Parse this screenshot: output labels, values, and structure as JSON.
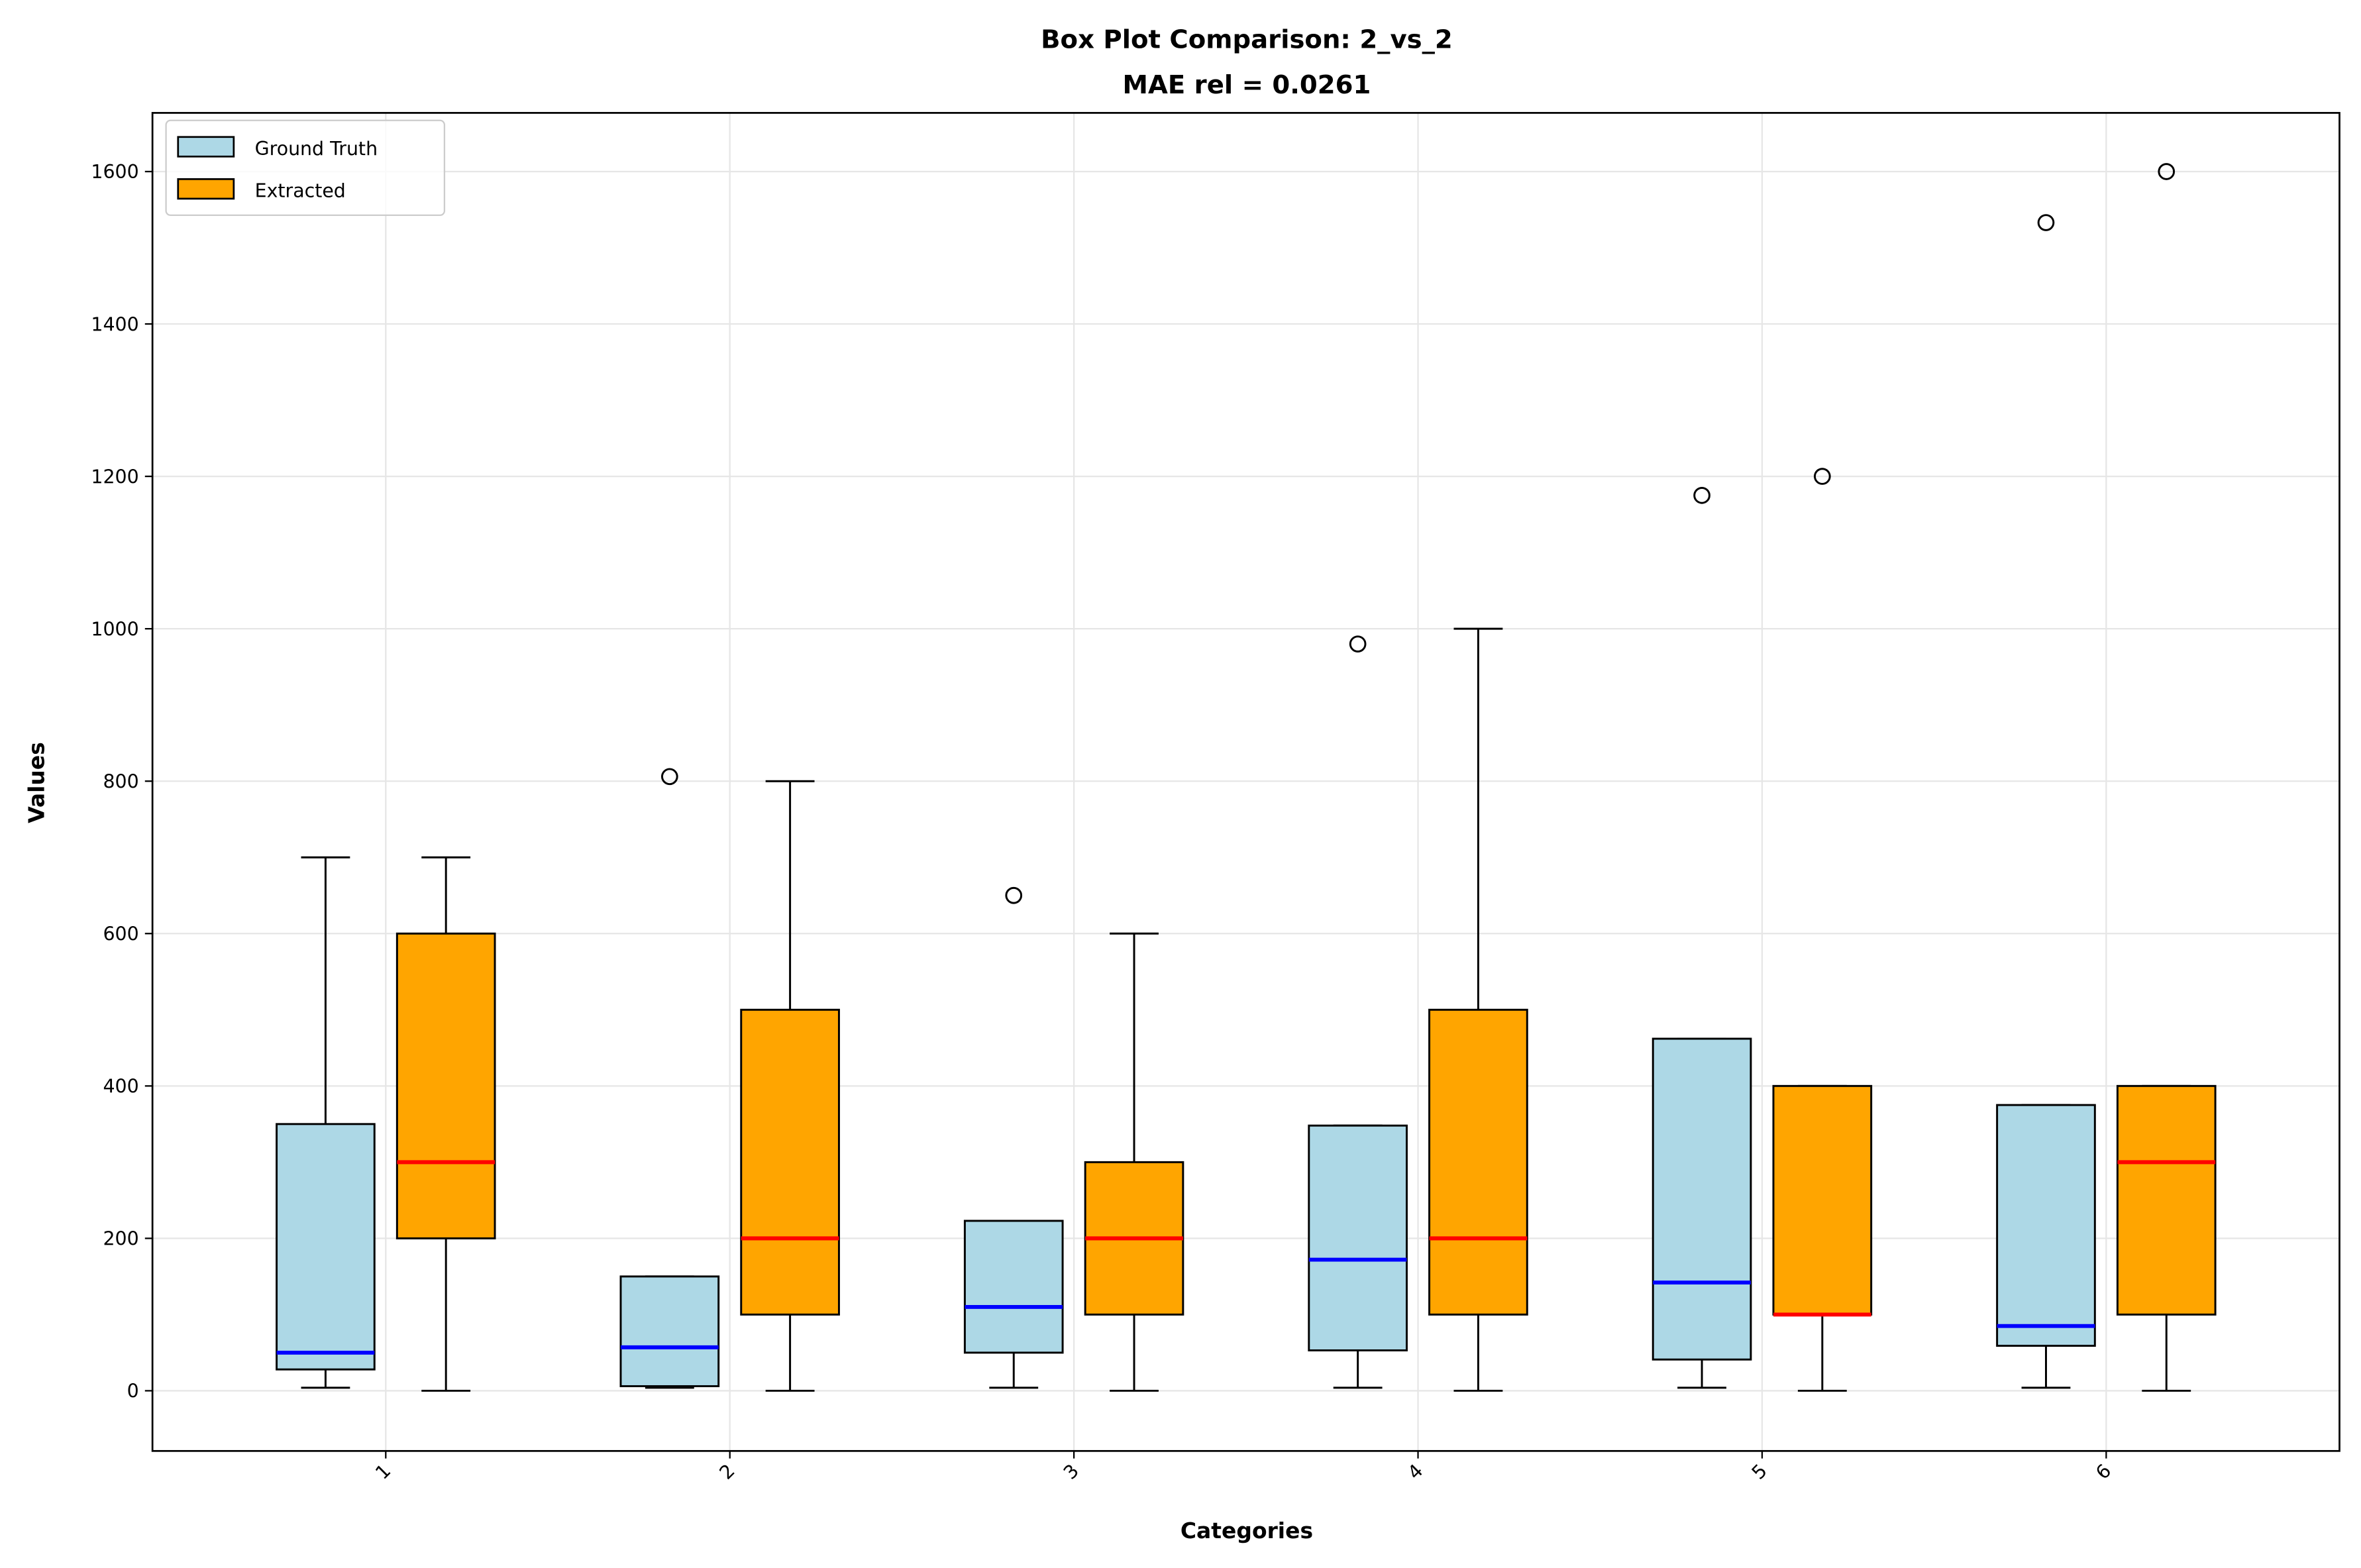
{
  "chart_data": {
    "type": "box",
    "title": "Box Plot Comparison: 2_vs_2",
    "subtitle": "MAE rel = 0.0261",
    "x_label": "Categories",
    "y_label": "Values",
    "categories": [
      "1",
      "2",
      "3",
      "4",
      "5",
      "6"
    ],
    "series": [
      {
        "name": "Ground Truth",
        "color": "#add8e6",
        "median_color": "#0000ff",
        "whisker_low": [
          4,
          4,
          4,
          4,
          4,
          4
        ],
        "q1": [
          28,
          6,
          50,
          53,
          41,
          59
        ],
        "median": [
          50,
          57,
          110,
          172,
          142,
          85
        ],
        "q3": [
          350,
          150,
          223,
          348,
          462,
          375
        ],
        "whisker_high": [
          700,
          150,
          223,
          348,
          462,
          375
        ],
        "outliers": [
          [],
          [
            806
          ],
          [
            650
          ],
          [
            980
          ],
          [
            1175
          ],
          [
            1533
          ]
        ]
      },
      {
        "name": "Extracted",
        "color": "#ffa500",
        "median_color": "#ff0000",
        "whisker_low": [
          0,
          0,
          0,
          0,
          0,
          0
        ],
        "q1": [
          200,
          100,
          100,
          100,
          100,
          100
        ],
        "median": [
          300,
          200,
          200,
          200,
          100,
          300
        ],
        "q3": [
          600,
          500,
          300,
          500,
          400,
          400
        ],
        "whisker_high": [
          700,
          800,
          600,
          1000,
          400,
          400
        ],
        "outliers": [
          [],
          [],
          [],
          [],
          [
            1200
          ],
          [
            1600
          ]
        ]
      }
    ],
    "ylim": [
      -79,
      1677
    ],
    "yticks": [
      0,
      200,
      400,
      600,
      800,
      1000,
      1200,
      1400,
      1600
    ],
    "grid": true,
    "legend": "upper left"
  }
}
